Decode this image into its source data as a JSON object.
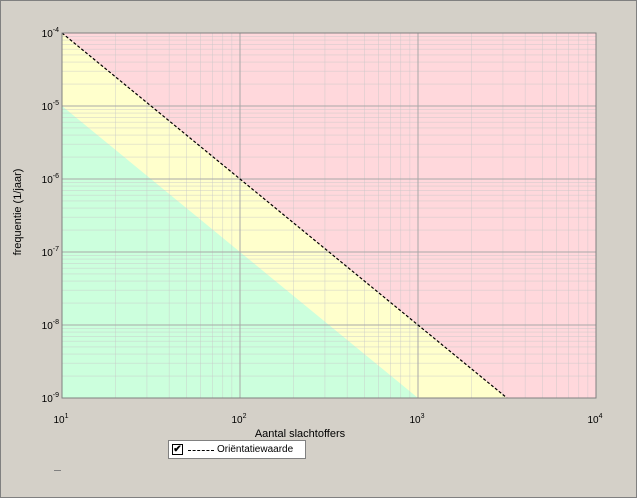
{
  "chart_data": {
    "type": "line",
    "title": "",
    "xlabel": "Aantal slachtoffers",
    "ylabel": "frequentie (1/jaar)",
    "x_scale": "log",
    "y_scale": "log",
    "xlim": [
      10,
      10000
    ],
    "ylim": [
      1e-09,
      0.0001
    ],
    "grid": true,
    "x_ticks": [
      {
        "base": "10",
        "exp": "1"
      },
      {
        "base": "10",
        "exp": "2"
      },
      {
        "base": "10",
        "exp": "3"
      },
      {
        "base": "10",
        "exp": "4"
      }
    ],
    "y_ticks": [
      {
        "base": "10",
        "exp": "-4"
      },
      {
        "base": "10",
        "exp": "-5"
      },
      {
        "base": "10",
        "exp": "-6"
      },
      {
        "base": "10",
        "exp": "-7"
      },
      {
        "base": "10",
        "exp": "-8"
      },
      {
        "base": "10",
        "exp": "-9"
      }
    ],
    "regions": [
      {
        "name": "green",
        "color": "#ccffdd",
        "upper_line": {
          "x": [
            10,
            1000
          ],
          "y": [
            1e-05,
            1e-09
          ]
        }
      },
      {
        "name": "yellow",
        "color": "#ffffcc",
        "upper_line": {
          "x": [
            10,
            3162.28
          ],
          "y": [
            0.0001,
            1e-09
          ]
        }
      },
      {
        "name": "red",
        "color": "#ffd8dc"
      }
    ],
    "series": [
      {
        "name": "Oriëntatiewaarde",
        "style": "dashed",
        "color": "#000000",
        "x": [
          10,
          100,
          1000,
          3162.28
        ],
        "y": [
          0.0001,
          1e-06,
          1e-08,
          1e-09
        ]
      }
    ],
    "legend": {
      "placement": "bottom-left",
      "checked": true,
      "check_glyph": "✔",
      "label": "Oriëntatiewaarde"
    }
  }
}
